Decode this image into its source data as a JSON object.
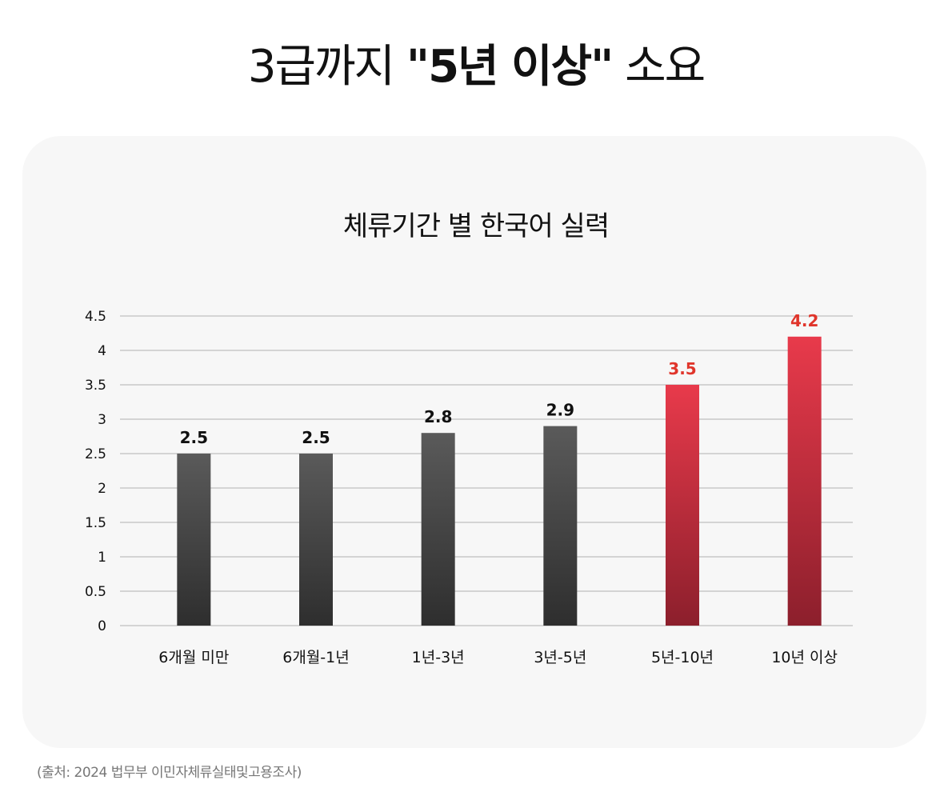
{
  "header": {
    "title_prefix": "3급까지 ",
    "title_emphasis": "\"5년 이상\"",
    "title_suffix": " 소요"
  },
  "chart_data": {
    "type": "bar",
    "title": "체류기간 별 한국어 실력",
    "categories": [
      "6개월 미만",
      "6개월-1년",
      "1년-3년",
      "3년-5년",
      "5년-10년",
      "10년 이상"
    ],
    "series": [
      {
        "values": [
          2.5,
          2.5,
          2.8,
          2.9,
          3.5,
          4.2
        ]
      }
    ],
    "data_labels": [
      "2.5",
      "2.5",
      "2.8",
      "2.9",
      "3.5",
      "4.2"
    ],
    "ylim": [
      0,
      4.5
    ],
    "yticks": [
      0,
      0.5,
      1,
      1.5,
      2,
      2.5,
      3,
      3.5,
      4,
      4.5
    ],
    "ytick_labels": [
      "0",
      "0.5",
      "1",
      "1.5",
      "2",
      "2.5",
      "3",
      "3.5",
      "4",
      "4.5"
    ],
    "grid": true,
    "highlighted": [
      false,
      false,
      false,
      false,
      true,
      true
    ],
    "colors": {
      "bar_dark_top": "#5a5a5a",
      "bar_dark_bottom": "#2e2e2e",
      "bar_red_top": "#e83a4b",
      "bar_red_bottom": "#8c1f2c",
      "label_dark": "#111111",
      "label_red": "#e0352b",
      "grid": "#c8c8c8"
    }
  },
  "footer": {
    "source": "(출처: 2024 법무부 이민자체류실태및고용조사)"
  }
}
